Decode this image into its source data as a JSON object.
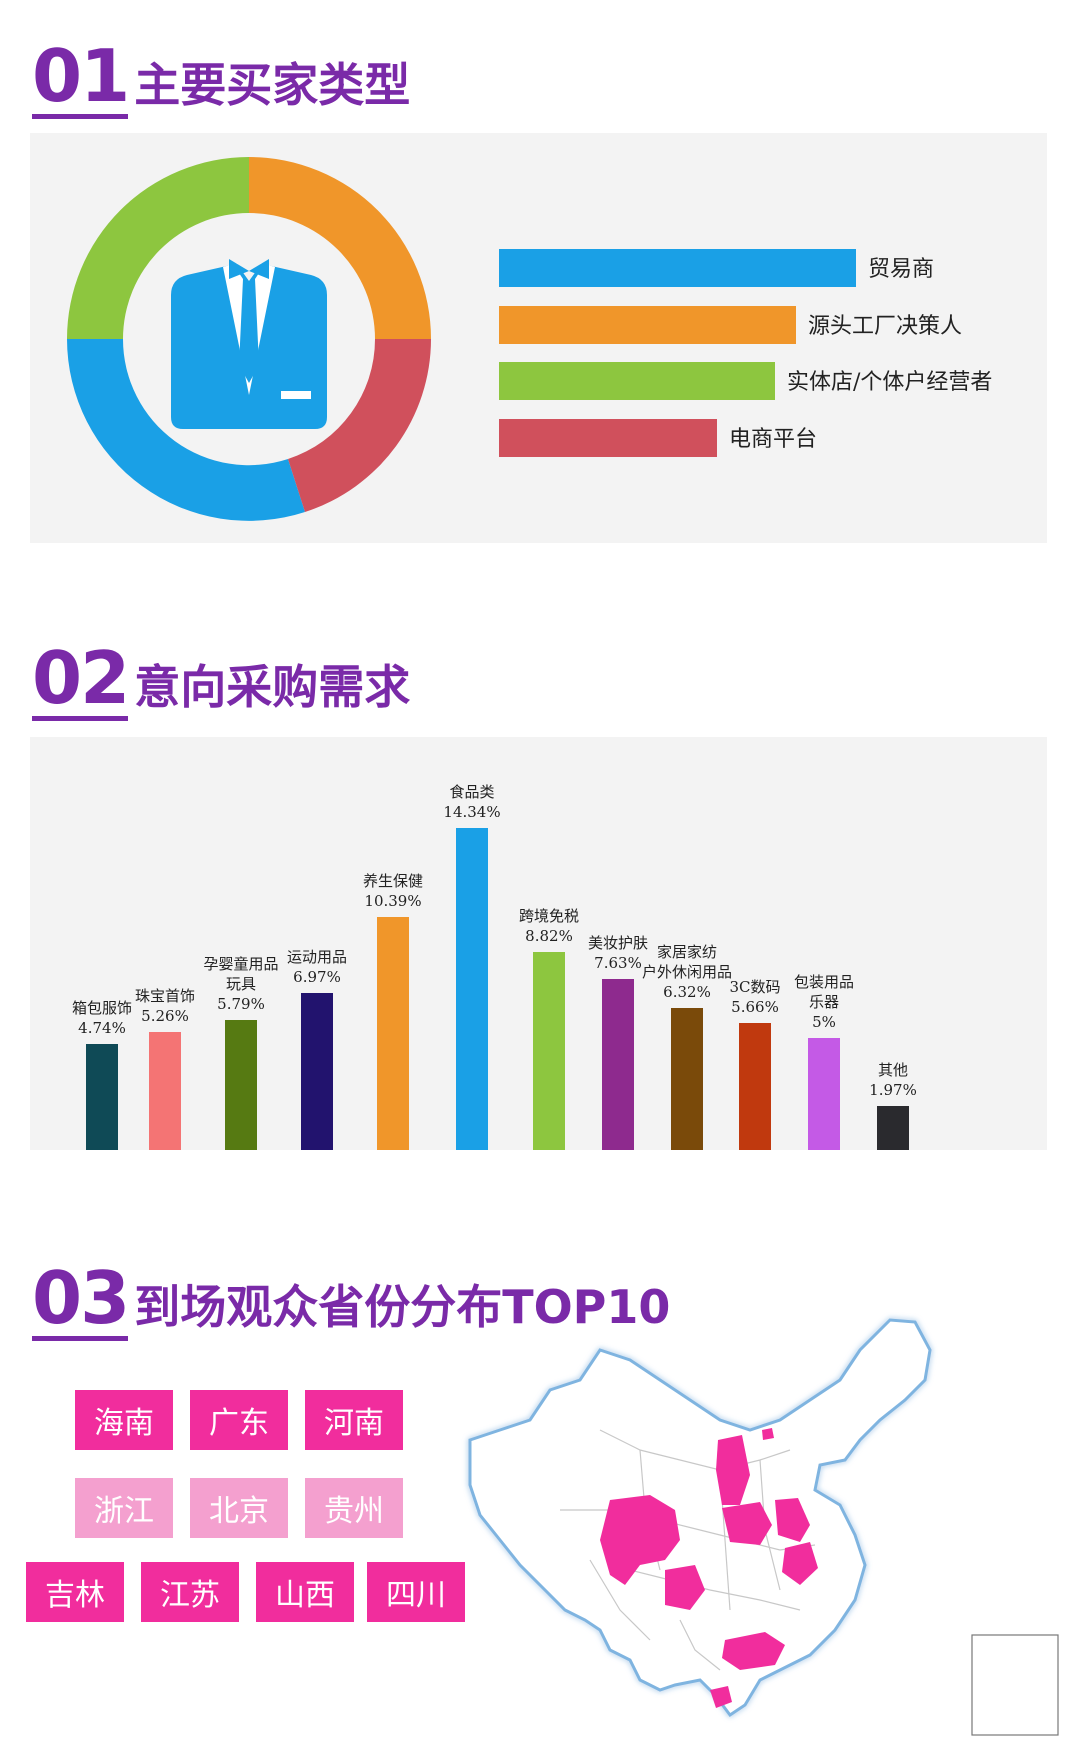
{
  "sections": [
    {
      "num": "01",
      "title": "主要买家类型"
    },
    {
      "num": "02",
      "title": "意向采购需求"
    },
    {
      "num": "03",
      "title": "到场观众省份分布TOP10"
    }
  ],
  "buyers": {
    "items": [
      {
        "label": "贸易商",
        "color": "#1aa0e6"
      },
      {
        "label": "源头工厂决策人",
        "color": "#f0962a"
      },
      {
        "label": "实体店/个体户经营者",
        "color": "#8dc63f"
      },
      {
        "label": "电商平台",
        "color": "#d0505c"
      }
    ],
    "icon": "suit-icon"
  },
  "chart_data": {
    "type": "bar",
    "categories": [
      "箱包服饰",
      "珠宝首饰",
      "孕婴童用品\n玩具",
      "运动用品",
      "养生保健",
      "食品类",
      "跨境免税",
      "美妆护肤",
      "家居家纺\n户外休闲用品",
      "3C数码",
      "包装用品\n乐器",
      "其他"
    ],
    "values": [
      4.74,
      5.26,
      5.79,
      6.97,
      10.39,
      14.34,
      8.82,
      7.63,
      6.32,
      5.66,
      5,
      1.97
    ],
    "value_labels": [
      "4.74%",
      "5.26%",
      "5.79%",
      "6.97%",
      "10.39%",
      "14.34%",
      "8.82%",
      "7.63%",
      "6.32%",
      "5.66%",
      "5%",
      "1.97%"
    ],
    "colors": [
      "#0f4a56",
      "#f47474",
      "#567a12",
      "#22136e",
      "#f0962a",
      "#1aa0e6",
      "#8dc63f",
      "#8e2a8e",
      "#7a4a0a",
      "#c0390e",
      "#c45ae6",
      "#2a2a2e"
    ],
    "ylim": [
      0,
      14.34
    ]
  },
  "provinces": {
    "items": [
      {
        "label": "海南",
        "color": "#f12d9d"
      },
      {
        "label": "广东",
        "color": "#f12d9d"
      },
      {
        "label": "河南",
        "color": "#f12d9d"
      },
      {
        "label": "浙江",
        "color": "#f4a0cf"
      },
      {
        "label": "北京",
        "color": "#f4a0cf"
      },
      {
        "label": "贵州",
        "color": "#f4a0cf"
      },
      {
        "label": "吉林",
        "color": "#f12d9d"
      },
      {
        "label": "江苏",
        "color": "#f12d9d"
      },
      {
        "label": "山西",
        "color": "#f12d9d"
      },
      {
        "label": "四川",
        "color": "#f12d9d"
      }
    ],
    "map": "china-map"
  }
}
